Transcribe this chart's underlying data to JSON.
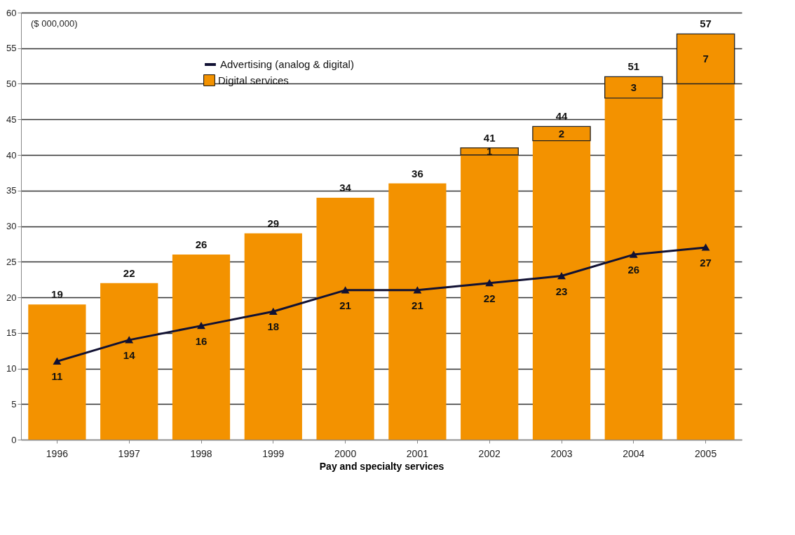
{
  "chart_data": {
    "type": "bar",
    "xlabel": "Pay and specialty services",
    "categories": [
      "1996",
      "1997",
      "1998",
      "1999",
      "2000",
      "2001",
      "2002",
      "2003",
      "2004",
      "2005"
    ],
    "stacked": true,
    "ylim": [
      0,
      60
    ],
    "yticks": [
      0,
      5,
      10,
      15,
      20,
      25,
      30,
      35,
      40,
      45,
      50,
      55,
      60
    ],
    "grid": "y",
    "legend": "top",
    "marker": "triangle",
    "line_style": "solid",
    "series": [
      {
        "color": "#f39200",
        "values": [
          19,
          22,
          26,
          29,
          34,
          36,
          40,
          42,
          48,
          50
        ]
      },
      {
        "name": "Digital services",
        "color": "#f39200",
        "values": [
          null,
          null,
          null,
          null,
          null,
          null,
          1,
          2,
          3,
          7
        ],
        "value_labels": [
          null,
          null,
          null,
          null,
          null,
          null,
          "1",
          "2",
          "3",
          "7"
        ]
      },
      {
        "name": "Advertising (analog & digital)",
        "type": "line",
        "color": "#111133",
        "values": [
          11,
          14,
          16,
          18,
          21,
          21,
          22,
          23,
          26,
          27
        ],
        "value_labels": [
          "11",
          "14",
          "16",
          "18",
          "21",
          "21",
          "22",
          "23",
          "26",
          "27"
        ]
      }
    ],
    "totals": [
      "19",
      "22",
      "26",
      "29",
      "34",
      "36",
      "41",
      "44",
      "51",
      "57"
    ],
    "annotations": [
      "($ 000,000)"
    ]
  }
}
